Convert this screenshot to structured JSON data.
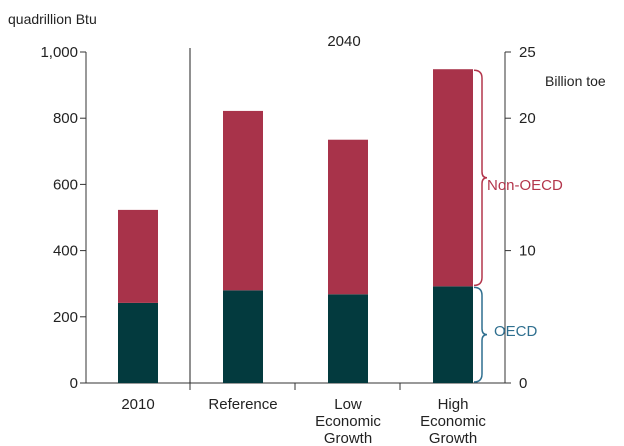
{
  "chart_data": {
    "type": "bar",
    "stacked": true,
    "header": "2040",
    "left_axis": {
      "label": "quadrillion Btu",
      "min": 0,
      "max": 1000,
      "ticks": [
        0,
        200,
        400,
        600,
        800,
        1000
      ],
      "tick_labels": [
        "0",
        "200",
        "400",
        "600",
        "800",
        "1,000"
      ]
    },
    "right_axis": {
      "label": "Billion toe",
      "min": 0,
      "max": 25,
      "ticks": [
        0,
        10,
        20,
        25
      ],
      "tick_labels": [
        "0",
        "10",
        "20",
        "25"
      ]
    },
    "categories": [
      {
        "lines": [
          "2010"
        ]
      },
      {
        "lines": [
          "Reference"
        ]
      },
      {
        "lines": [
          "Low",
          "Economic",
          "Growth"
        ]
      },
      {
        "lines": [
          "High",
          "Economic",
          "Growth"
        ]
      }
    ],
    "series": [
      {
        "name": "OECD",
        "color": "#033a3e",
        "values": [
          242,
          280,
          268,
          292
        ]
      },
      {
        "name": "Non-OECD",
        "color": "#a8334a",
        "values": [
          281,
          542,
          467,
          656
        ]
      }
    ],
    "bracket_labels": {
      "oecd": "OECD",
      "non_oecd": "Non-OECD"
    },
    "bracket_colors": {
      "oecd": "#2f6f8f",
      "non_oecd": "#b3364c"
    },
    "grid": false,
    "legend": "brackets at right"
  }
}
